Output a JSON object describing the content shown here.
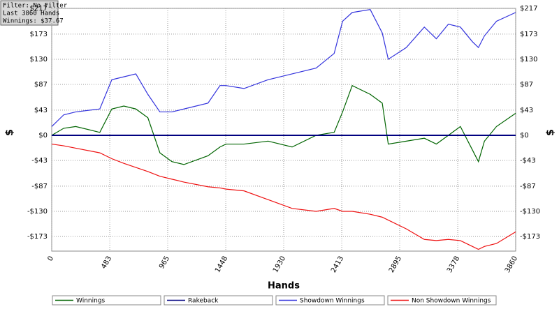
{
  "chart_data": {
    "type": "line",
    "info": [
      "Filter: No Filter",
      "Last  3860 Hands",
      "Winnings: $37.67"
    ],
    "x_label": "Hands",
    "y_label": "$",
    "x": [
      0,
      100,
      200,
      400,
      500,
      600,
      700,
      800,
      900,
      1000,
      1100,
      1300,
      1400,
      1450,
      1600,
      1800,
      2000,
      2200,
      2350,
      2420,
      2500,
      2650,
      2750,
      2800,
      2950,
      3100,
      3200,
      3300,
      3400,
      3500,
      3550,
      3600,
      3700,
      3860
    ],
    "series": [
      {
        "name": "Winnings",
        "color": "#006400",
        "values": [
          0,
          12,
          15,
          5,
          45,
          50,
          45,
          30,
          -30,
          -45,
          -50,
          -35,
          -20,
          -15,
          -15,
          -10,
          -20,
          0,
          5,
          40,
          85,
          70,
          55,
          -15,
          -10,
          -5,
          -15,
          0,
          15,
          -25,
          -45,
          -10,
          15,
          37.67
        ]
      },
      {
        "name": "Rakeback",
        "color": "#000080",
        "values": [
          0,
          0,
          0,
          0,
          0,
          0,
          0,
          0,
          0,
          0,
          0,
          0,
          0,
          0,
          0,
          0,
          0,
          0,
          0,
          0,
          0,
          0,
          0,
          0,
          0,
          0,
          0,
          0,
          0,
          0,
          0,
          0,
          0,
          0
        ]
      },
      {
        "name": "Showdown Winnings",
        "color": "#3333dd",
        "values": [
          15,
          35,
          40,
          45,
          95,
          100,
          105,
          70,
          40,
          40,
          45,
          55,
          85,
          85,
          80,
          95,
          105,
          115,
          140,
          195,
          210,
          215,
          175,
          130,
          150,
          185,
          165,
          190,
          185,
          160,
          150,
          170,
          195,
          210
        ]
      },
      {
        "name": "Non Showdown Winnings",
        "color": "#ee1111",
        "values": [
          -15,
          -18,
          -22,
          -30,
          -40,
          -48,
          -55,
          -62,
          -70,
          -75,
          -80,
          -88,
          -90,
          -92,
          -95,
          -110,
          -125,
          -130,
          -125,
          -130,
          -130,
          -135,
          -140,
          -145,
          -160,
          -178,
          -180,
          -178,
          -180,
          -190,
          -195,
          -190,
          -185,
          -165
        ]
      }
    ],
    "xlim": [
      0,
      3860
    ],
    "xticks": [
      0,
      483,
      965,
      1448,
      1930,
      2413,
      2895,
      3378,
      3860
    ],
    "ylim": [
      -198,
      217
    ],
    "yticks": [
      {
        "value": 217,
        "label": "$217"
      },
      {
        "value": 173,
        "label": "$173"
      },
      {
        "value": 130,
        "label": "$130"
      },
      {
        "value": 87,
        "label": "$87"
      },
      {
        "value": 43,
        "label": "$43"
      },
      {
        "value": 0,
        "label": "$0"
      },
      {
        "value": -43,
        "label": "-$43"
      },
      {
        "value": -87,
        "label": "-$87"
      },
      {
        "value": -130,
        "label": "-$130"
      },
      {
        "value": -173,
        "label": "-$173"
      }
    ],
    "grid": true
  }
}
